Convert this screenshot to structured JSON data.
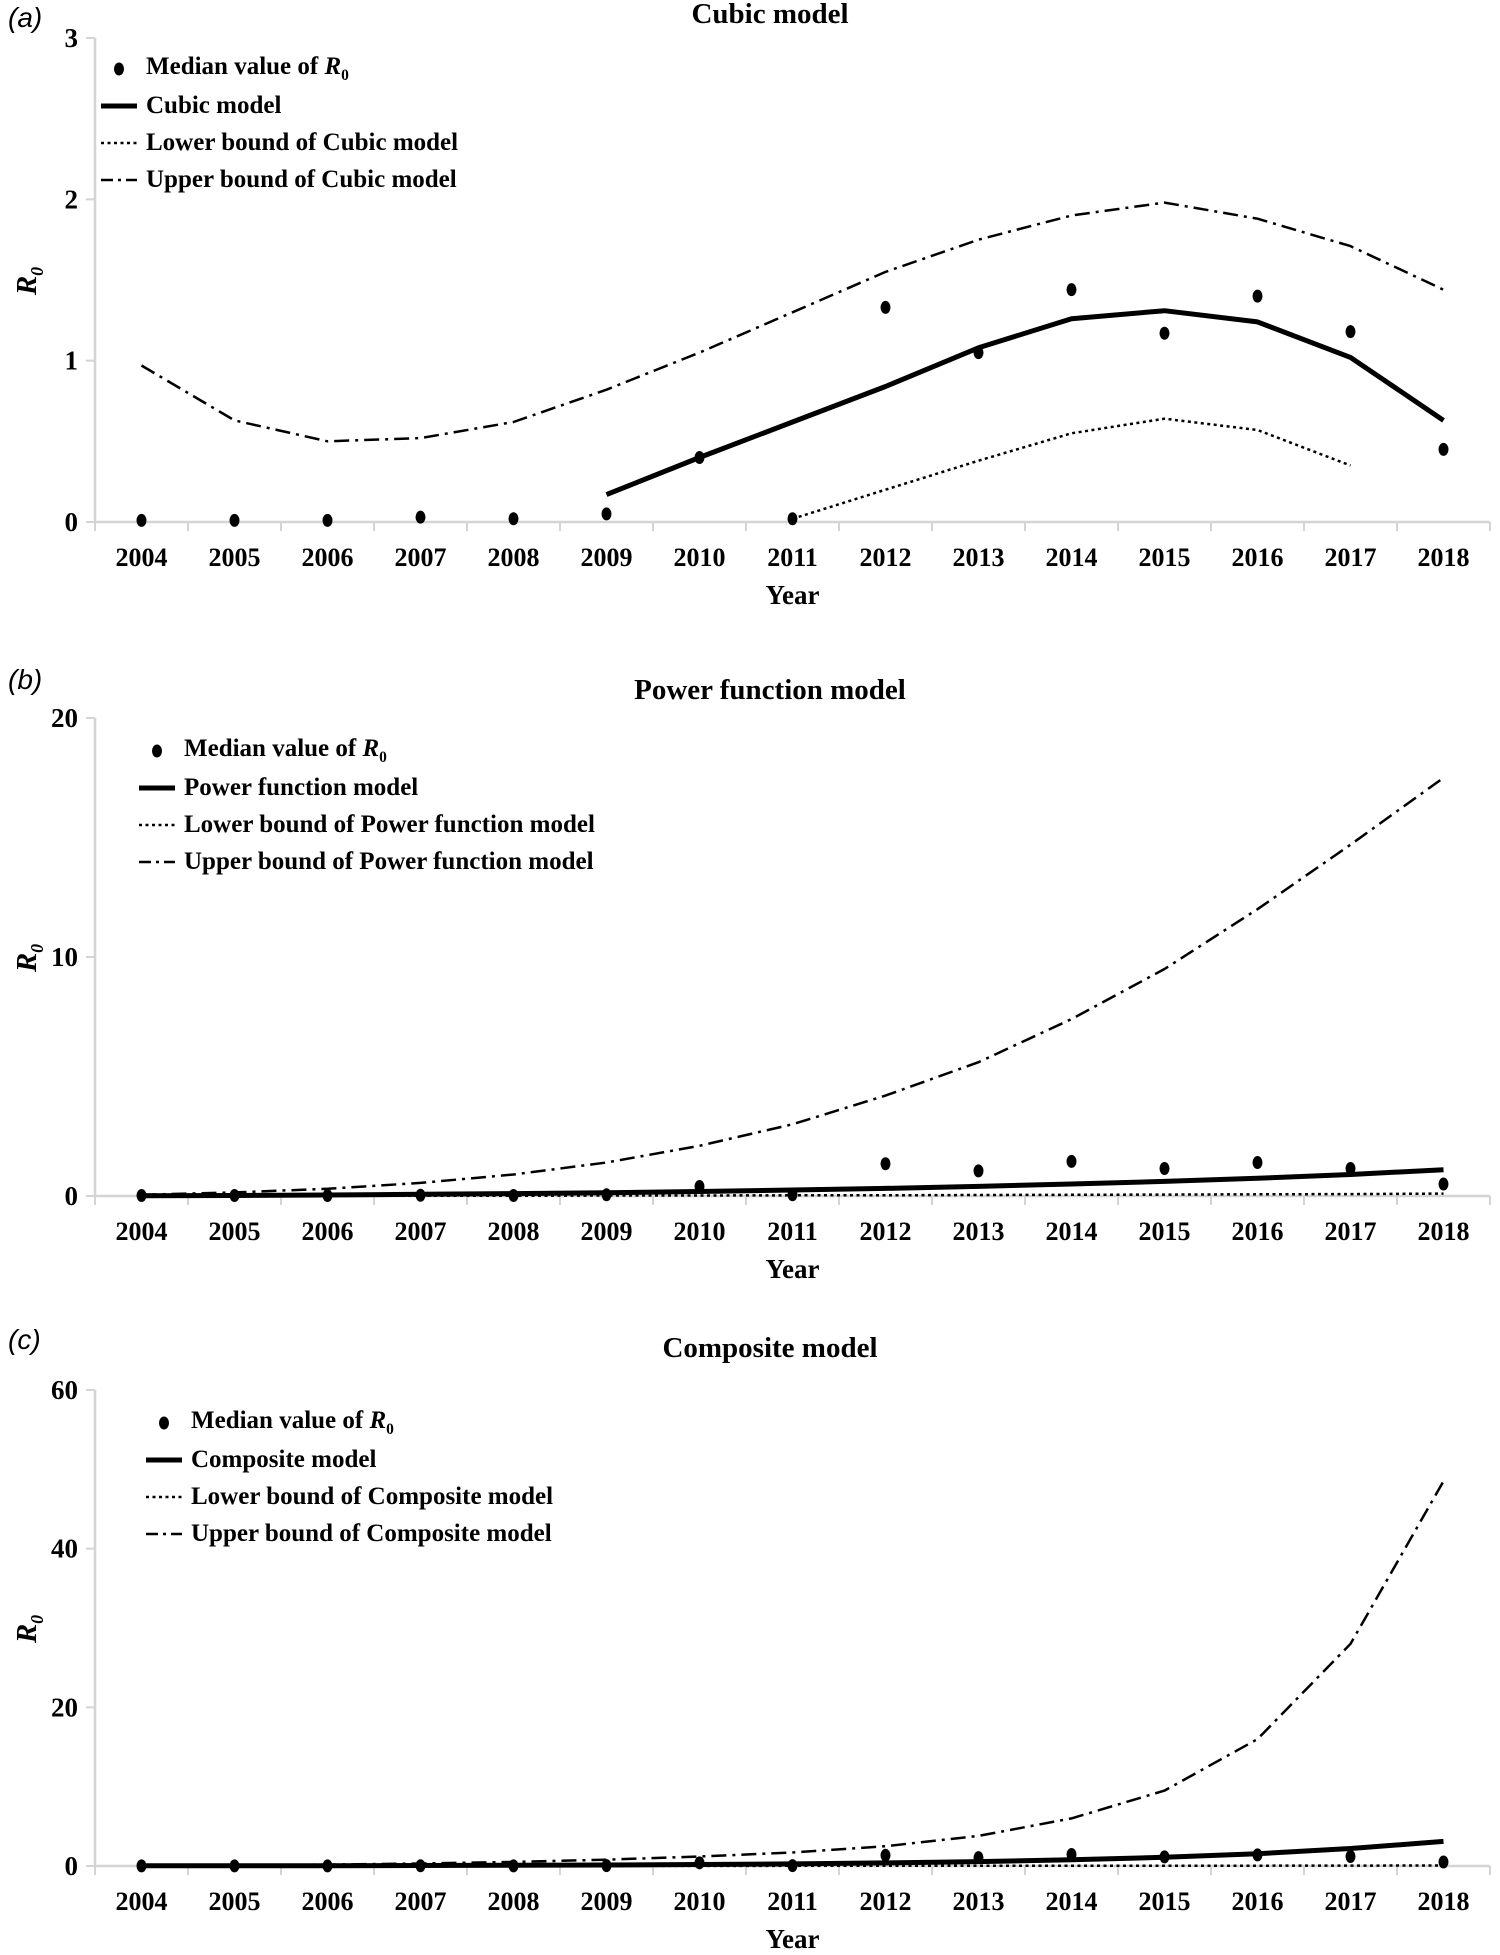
{
  "figure": {
    "background_color": "#ffffff",
    "axis_color": "#d4d4d4",
    "data_color": "#000000"
  },
  "chart_data": [
    {
      "id": "a",
      "panel_label": "(a)",
      "title": "Cubic model",
      "type": "line+scatter",
      "xlabel": "Year",
      "ylabel": "R₀",
      "x": [
        2004,
        2005,
        2006,
        2007,
        2008,
        2009,
        2010,
        2011,
        2012,
        2013,
        2014,
        2015,
        2016,
        2017,
        2018
      ],
      "ylim": [
        0,
        3
      ],
      "yticks": [
        0,
        1,
        2,
        3
      ],
      "grid": false,
      "legend_position": "top-left-inside",
      "scatter": {
        "label": "Median value of R₀",
        "values": [
          0.01,
          0.01,
          0.01,
          0.03,
          0.02,
          0.05,
          0.4,
          0.02,
          1.33,
          1.05,
          1.44,
          1.17,
          1.4,
          1.18,
          0.45
        ]
      },
      "series": [
        {
          "label": "Cubic model",
          "line_style": "solid",
          "x_start": 2009,
          "values": [
            0.17,
            0.4,
            0.62,
            0.84,
            1.08,
            1.26,
            1.31,
            1.24,
            1.02,
            0.63
          ]
        },
        {
          "label": "Lower bound of Cubic model",
          "line_style": "dotted",
          "x_start": 2011,
          "values": [
            0.02,
            0.2,
            0.38,
            0.55,
            0.64,
            0.57,
            0.35
          ]
        },
        {
          "label": "Upper bound of Cubic model",
          "line_style": "dashdot",
          "x_start": 2004,
          "values": [
            0.97,
            0.63,
            0.5,
            0.52,
            0.62,
            0.82,
            1.05,
            1.3,
            1.55,
            1.75,
            1.9,
            1.98,
            1.88,
            1.71,
            1.44
          ]
        }
      ]
    },
    {
      "id": "b",
      "panel_label": "(b)",
      "title": "Power function model",
      "type": "line+scatter",
      "xlabel": "Year",
      "ylabel": "R₀",
      "x": [
        2004,
        2005,
        2006,
        2007,
        2008,
        2009,
        2010,
        2011,
        2012,
        2013,
        2014,
        2015,
        2016,
        2017,
        2018
      ],
      "ylim": [
        0,
        20
      ],
      "yticks": [
        0,
        10,
        20
      ],
      "grid": false,
      "legend_position": "top-left-inside",
      "scatter": {
        "label": "Median value of R₀",
        "values": [
          0.02,
          0.02,
          0.02,
          0.03,
          0.02,
          0.05,
          0.4,
          0.05,
          1.35,
          1.05,
          1.45,
          1.15,
          1.4,
          1.15,
          0.5
        ]
      },
      "series": [
        {
          "label": "Power function model",
          "line_style": "solid",
          "x_start": 2004,
          "values": [
            0.01,
            0.02,
            0.04,
            0.07,
            0.1,
            0.14,
            0.19,
            0.25,
            0.32,
            0.4,
            0.5,
            0.61,
            0.74,
            0.9,
            1.1
          ]
        },
        {
          "label": "Lower bound of Power function model",
          "line_style": "dotted",
          "x_start": 2004,
          "values": [
            0.0,
            0.0,
            0.01,
            0.01,
            0.01,
            0.02,
            0.02,
            0.03,
            0.03,
            0.04,
            0.05,
            0.06,
            0.07,
            0.08,
            0.1
          ]
        },
        {
          "label": "Upper bound of Power function model",
          "line_style": "dashdot",
          "x_start": 2004,
          "values": [
            0.05,
            0.15,
            0.3,
            0.55,
            0.9,
            1.4,
            2.1,
            3.0,
            4.2,
            5.6,
            7.4,
            9.5,
            12.0,
            14.7,
            17.5
          ]
        }
      ]
    },
    {
      "id": "c",
      "panel_label": "(c)",
      "title": "Composite model",
      "type": "line+scatter",
      "xlabel": "Year",
      "ylabel": "R₀",
      "x": [
        2004,
        2005,
        2006,
        2007,
        2008,
        2009,
        2010,
        2011,
        2012,
        2013,
        2014,
        2015,
        2016,
        2017,
        2018
      ],
      "ylim": [
        0,
        60
      ],
      "yticks": [
        0,
        20,
        40,
        60
      ],
      "grid": false,
      "legend_position": "top-left-inside",
      "scatter": {
        "label": "Median value of R₀",
        "values": [
          0.02,
          0.02,
          0.02,
          0.03,
          0.02,
          0.05,
          0.4,
          0.05,
          1.35,
          1.05,
          1.45,
          1.15,
          1.4,
          1.2,
          0.5
        ]
      },
      "series": [
        {
          "label": "Composite model",
          "line_style": "solid",
          "x_start": 2004,
          "values": [
            0.02,
            0.03,
            0.04,
            0.06,
            0.09,
            0.13,
            0.19,
            0.27,
            0.39,
            0.55,
            0.78,
            1.1,
            1.55,
            2.2,
            3.1
          ]
        },
        {
          "label": "Lower bound of Composite model",
          "line_style": "dotted",
          "x_start": 2004,
          "values": [
            0.0,
            0.0,
            0.0,
            0.01,
            0.01,
            0.01,
            0.01,
            0.02,
            0.02,
            0.03,
            0.03,
            0.04,
            0.04,
            0.05,
            0.06
          ]
        },
        {
          "label": "Upper bound of Composite model",
          "line_style": "dashdot",
          "x_start": 2004,
          "values": [
            0.05,
            0.1,
            0.18,
            0.32,
            0.52,
            0.8,
            1.2,
            1.7,
            2.5,
            3.8,
            6.0,
            9.5,
            16.0,
            28.0,
            48.5
          ]
        }
      ]
    }
  ]
}
